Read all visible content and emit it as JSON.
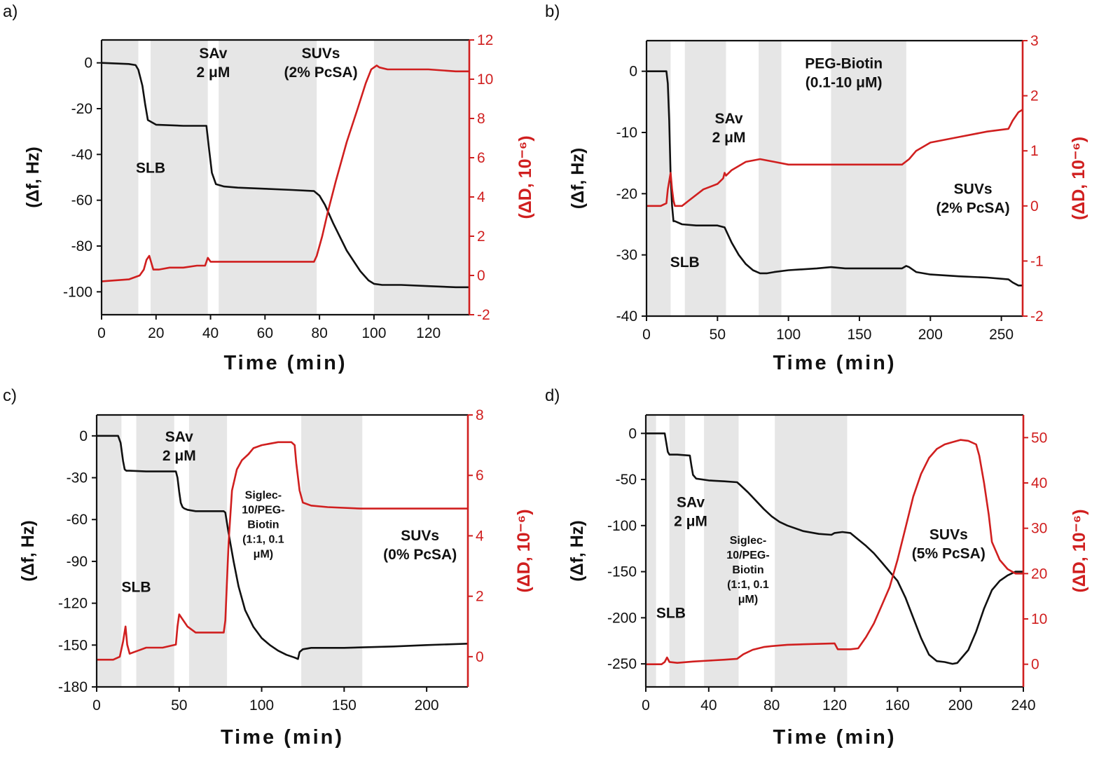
{
  "figure": {
    "colors": {
      "frequency": "#111111",
      "dissipation": "#d01f1f",
      "shade": "#e6e6e6",
      "axis_right": "#d01f1f"
    }
  },
  "chart_data": [
    {
      "panel_label": "a)",
      "type": "line",
      "xlabel": "Time (min)",
      "ylabel": "(Δf, Hz)",
      "ylabel2": "(ΔD, 10⁻⁶)",
      "xlim": [
        0,
        135
      ],
      "ylim": [
        -110,
        10
      ],
      "y2lim": [
        -2,
        12
      ],
      "xticks": [
        0,
        20,
        40,
        60,
        80,
        100,
        120
      ],
      "yticks": [
        0,
        -20,
        -40,
        -60,
        -80,
        -100
      ],
      "y2ticks": [
        -2,
        0,
        2,
        4,
        6,
        8,
        10,
        12
      ],
      "shaded": [
        [
          0,
          13.5
        ],
        [
          18,
          39
        ],
        [
          43,
          79
        ],
        [
          100,
          135
        ]
      ],
      "annotations": [
        {
          "lines": [
            "SLB"
          ],
          "x": 18,
          "y": -48
        },
        {
          "lines": [
            "SAv",
            "2 μM"
          ],
          "x": 41,
          "y": 2
        },
        {
          "lines": [
            "SUVs",
            "(2% PcSA)"
          ],
          "x": 80.5,
          "y": 2
        }
      ],
      "series": [
        {
          "name": "Δf",
          "axis": "left",
          "x": [
            0,
            10,
            12.5,
            13.5,
            15,
            16,
            17,
            20,
            30,
            38.5,
            39.5,
            40.5,
            42,
            45,
            50,
            60,
            70,
            78,
            80,
            82,
            85,
            90,
            95,
            98,
            100,
            103,
            110,
            120,
            130,
            135
          ],
          "y": [
            0,
            -0.5,
            -1,
            -3,
            -10,
            -18,
            -25,
            -27,
            -27.5,
            -27.5,
            -38,
            -48,
            -53,
            -54,
            -54.5,
            -55,
            -55.5,
            -56,
            -58,
            -62,
            -70,
            -82,
            -91,
            -95,
            -96.5,
            -97,
            -97,
            -97.5,
            -98,
            -98
          ]
        },
        {
          "name": "ΔD",
          "axis": "right",
          "x": [
            0,
            10,
            14,
            15.5,
            16.5,
            17.5,
            19,
            21,
            25,
            30,
            35,
            38,
            39,
            40,
            42,
            50,
            60,
            70,
            78,
            79,
            81,
            83,
            86,
            90,
            94,
            97,
            99,
            101,
            102,
            105,
            110,
            120,
            130,
            135
          ],
          "y": [
            -0.3,
            -0.2,
            0,
            0.3,
            0.8,
            1.0,
            0.3,
            0.3,
            0.4,
            0.4,
            0.5,
            0.5,
            0.9,
            0.7,
            0.7,
            0.7,
            0.7,
            0.7,
            0.7,
            1.0,
            2.0,
            3.2,
            4.8,
            6.8,
            8.5,
            9.8,
            10.5,
            10.7,
            10.6,
            10.5,
            10.5,
            10.5,
            10.4,
            10.4
          ]
        }
      ]
    },
    {
      "panel_label": "b)",
      "type": "line",
      "xlabel": "Time (min)",
      "ylabel": "(Δf, Hz)",
      "ylabel2": "(ΔD, 10⁻⁶)",
      "xlim": [
        0,
        265
      ],
      "ylim": [
        -40,
        5
      ],
      "y2lim": [
        -2,
        3
      ],
      "xticks": [
        0,
        50,
        100,
        150,
        200,
        250
      ],
      "yticks": [
        0,
        -10,
        -20,
        -30,
        -40
      ],
      "y2ticks": [
        -2,
        -1,
        0,
        1,
        2,
        3
      ],
      "shaded": [
        [
          0,
          17
        ],
        [
          27,
          56
        ],
        [
          79,
          95
        ],
        [
          130,
          183
        ]
      ],
      "annotations": [
        {
          "lines": [
            "PEG-Biotin",
            "(0.1-10 μM)"
          ],
          "x": 139,
          "y": 0.5
        },
        {
          "lines": [
            "SAv",
            "2 μM"
          ],
          "x": 58,
          "y": -8.5
        },
        {
          "lines": [
            "SLB"
          ],
          "x": 27,
          "y": -32
        },
        {
          "lines": [
            "SUVs",
            "(2% PcSA)"
          ],
          "x": 230,
          "y": -20
        }
      ],
      "series": [
        {
          "name": "Δf",
          "axis": "left",
          "x": [
            0,
            14,
            15,
            16,
            17,
            18,
            19,
            20,
            25,
            35,
            50,
            55,
            60,
            65,
            70,
            75,
            80,
            85,
            90,
            100,
            120,
            130,
            140,
            160,
            180,
            183,
            185,
            190,
            200,
            220,
            240,
            255,
            258,
            262,
            265
          ],
          "y": [
            0,
            0,
            -2,
            -8,
            -17,
            -22,
            -24.5,
            -24.5,
            -25,
            -25.2,
            -25.2,
            -25.5,
            -28,
            -30,
            -31.5,
            -32.5,
            -33,
            -33,
            -32.8,
            -32.5,
            -32.2,
            -32,
            -32.2,
            -32.2,
            -32.2,
            -31.8,
            -32,
            -32.8,
            -33.2,
            -33.5,
            -33.7,
            -34,
            -34.5,
            -35,
            -35
          ]
        },
        {
          "name": "ΔD",
          "axis": "right",
          "x": [
            0,
            10,
            14,
            15,
            17,
            18,
            19,
            20,
            25,
            30,
            40,
            50,
            54,
            55,
            56,
            60,
            70,
            80,
            90,
            100,
            120,
            140,
            160,
            180,
            185,
            190,
            200,
            220,
            240,
            255,
            258,
            262,
            265
          ],
          "y": [
            0.0,
            0.0,
            0.05,
            0.3,
            0.6,
            0.3,
            0.1,
            0.0,
            0.0,
            0.1,
            0.3,
            0.4,
            0.5,
            0.6,
            0.55,
            0.65,
            0.8,
            0.85,
            0.8,
            0.75,
            0.75,
            0.75,
            0.75,
            0.75,
            0.85,
            1.0,
            1.15,
            1.25,
            1.35,
            1.4,
            1.55,
            1.7,
            1.75
          ]
        }
      ]
    },
    {
      "panel_label": "c)",
      "type": "line",
      "xlabel": "Time (min)",
      "ylabel": "(Δf, Hz)",
      "ylabel2": "(ΔD, 10⁻⁶)",
      "xlim": [
        0,
        225
      ],
      "ylim": [
        -180,
        15
      ],
      "y2lim": [
        -1,
        8
      ],
      "xticks": [
        0,
        50,
        100,
        150,
        200
      ],
      "yticks": [
        0,
        -30,
        -60,
        -90,
        -120,
        -150,
        -180
      ],
      "y2ticks": [
        0,
        2,
        4,
        6,
        8
      ],
      "shaded": [
        [
          0,
          15
        ],
        [
          24,
          47
        ],
        [
          56,
          79
        ],
        [
          124,
          161
        ]
      ],
      "annotations": [
        {
          "lines": [
            "SLB"
          ],
          "x": 24,
          "y": -112
        },
        {
          "lines": [
            "SAv",
            "2 μM"
          ],
          "x": 50,
          "y": -4
        },
        {
          "lines": [
            "SUVs",
            "(0% PcSA)"
          ],
          "x": 196,
          "y": -75
        }
      ],
      "annotations_small": [
        {
          "lines": [
            "Siglec-",
            "10/PEG-",
            "Biotin",
            "(1:1, 0.1",
            "μM)"
          ],
          "x": 101,
          "y": -45
        }
      ],
      "series": [
        {
          "name": "Δf",
          "axis": "left",
          "x": [
            0,
            13,
            14.5,
            16,
            17,
            18,
            20,
            30,
            48,
            49,
            50,
            51,
            52,
            53,
            55,
            60,
            70,
            77,
            78,
            80,
            83,
            86,
            90,
            95,
            100,
            105,
            110,
            115,
            120,
            122,
            123,
            125,
            130,
            150,
            180,
            200,
            225
          ],
          "y": [
            0,
            0,
            -5,
            -18,
            -24,
            -25,
            -25,
            -25.5,
            -25.5,
            -30,
            -40,
            -48,
            -51,
            -52,
            -53,
            -54,
            -54,
            -54,
            -55,
            -70,
            -90,
            -108,
            -125,
            -137,
            -145,
            -150,
            -154,
            -157,
            -159,
            -160,
            -155,
            -153,
            -152,
            -152,
            -151,
            -150,
            -149
          ]
        },
        {
          "name": "ΔD",
          "axis": "right",
          "x": [
            0,
            10,
            14,
            16,
            17.5,
            18.5,
            20,
            25,
            30,
            40,
            48,
            49,
            50,
            55,
            60,
            70,
            77,
            78,
            80,
            82,
            85,
            88,
            92,
            95,
            100,
            110,
            118,
            120,
            121,
            123,
            125,
            130,
            140,
            160,
            180,
            200,
            225
          ],
          "y": [
            -0.1,
            -0.1,
            0,
            0.5,
            1.0,
            0.4,
            0.1,
            0.2,
            0.3,
            0.3,
            0.4,
            1.0,
            1.4,
            1.0,
            0.8,
            0.8,
            0.8,
            1.2,
            3.8,
            5.5,
            6.2,
            6.5,
            6.7,
            6.9,
            7.0,
            7.1,
            7.1,
            7.0,
            6.4,
            5.5,
            5.1,
            5.0,
            4.95,
            4.9,
            4.9,
            4.9,
            4.9
          ]
        }
      ]
    },
    {
      "panel_label": "d)",
      "type": "line",
      "xlabel": "Time (min)",
      "ylabel": "(Δf, Hz)",
      "ylabel2": "(ΔD, 10⁻⁶)",
      "xlim": [
        0,
        240
      ],
      "ylim": [
        -275,
        20
      ],
      "y2lim": [
        -5,
        55
      ],
      "xticks": [
        0,
        40,
        80,
        120,
        160,
        200,
        240
      ],
      "yticks": [
        0,
        -50,
        -100,
        -150,
        -200,
        -250
      ],
      "y2ticks": [
        0,
        10,
        20,
        30,
        40,
        50
      ],
      "shaded": [
        [
          0,
          6.5
        ],
        [
          15,
          25
        ],
        [
          37,
          59
        ],
        [
          82,
          128
        ]
      ],
      "annotations": [
        {
          "lines": [
            "SAv",
            "2 μM"
          ],
          "x": 28.5,
          "y": -80
        },
        {
          "lines": [
            "SLB"
          ],
          "x": 16,
          "y": -200
        },
        {
          "lines": [
            "SUVs",
            "(5% PcSA)"
          ],
          "x": 192.5,
          "y": -115
        }
      ],
      "annotations_small": [
        {
          "lines": [
            "Siglec-",
            "10/PEG-",
            "Biotin",
            "(1:1, 0.1",
            "μM)"
          ],
          "x": 65,
          "y": -120
        }
      ],
      "series": [
        {
          "name": "Δf",
          "axis": "left",
          "x": [
            0,
            12,
            13,
            14,
            15,
            20,
            28,
            29,
            30,
            32,
            40,
            50,
            58,
            60,
            65,
            70,
            75,
            80,
            85,
            90,
            100,
            110,
            118,
            120,
            125,
            130,
            135,
            140,
            145,
            150,
            155,
            160,
            165,
            170,
            175,
            180,
            185,
            190,
            195,
            198,
            200,
            205,
            210,
            215,
            220,
            225,
            230,
            235,
            240
          ],
          "y": [
            0,
            0,
            -10,
            -20,
            -23,
            -23,
            -24,
            -35,
            -45,
            -49,
            -51,
            -52,
            -53,
            -56,
            -64,
            -73,
            -82,
            -90,
            -96,
            -100,
            -106,
            -109,
            -110,
            -108,
            -107,
            -108,
            -115,
            -122,
            -130,
            -140,
            -150,
            -160,
            -178,
            -200,
            -222,
            -240,
            -247,
            -248,
            -250,
            -249,
            -245,
            -235,
            -215,
            -190,
            -170,
            -160,
            -154,
            -150,
            -150
          ]
        },
        {
          "name": "ΔD",
          "axis": "right",
          "x": [
            0,
            10,
            12,
            13.5,
            15,
            20,
            30,
            40,
            50,
            58,
            62,
            68,
            75,
            80,
            90,
            100,
            110,
            120,
            122,
            125,
            130,
            135,
            140,
            145,
            150,
            155,
            160,
            165,
            170,
            175,
            180,
            185,
            190,
            195,
            200,
            205,
            210,
            212,
            215,
            218,
            220,
            225,
            230,
            235,
            240
          ],
          "y": [
            0,
            0,
            0.5,
            1.5,
            0.5,
            0.3,
            0.6,
            0.8,
            1.0,
            1.2,
            2.2,
            3.2,
            3.8,
            4.0,
            4.3,
            4.4,
            4.5,
            4.6,
            3.3,
            3.3,
            3.3,
            3.5,
            6,
            9,
            13,
            17,
            23,
            30,
            37,
            42,
            45.5,
            47.5,
            48.5,
            49,
            49.5,
            49.3,
            48.5,
            46,
            40,
            33,
            27,
            23,
            21,
            20,
            20
          ]
        }
      ]
    }
  ]
}
